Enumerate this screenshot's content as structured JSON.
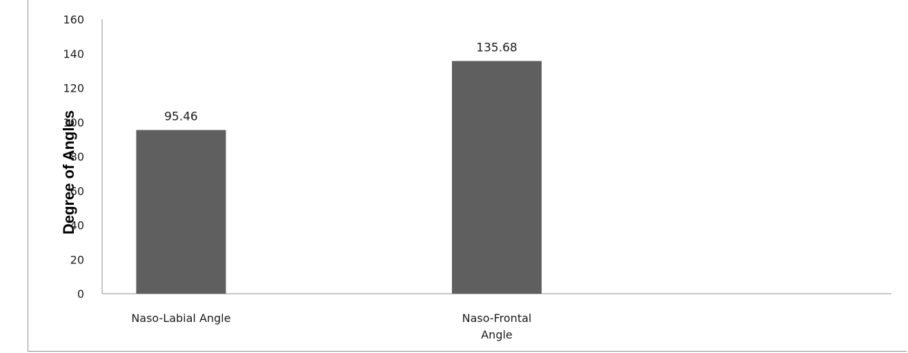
{
  "chart_data": {
    "type": "bar",
    "title": "",
    "xlabel": "",
    "ylabel": "Degree of Angles",
    "categories": [
      [
        "Naso-Labial Angle"
      ],
      [
        "Naso-Frontal",
        "Angle"
      ]
    ],
    "category_names": [
      "Naso-Labial Angle",
      "Naso-Frontal Angle"
    ],
    "values": [
      95.46,
      135.68
    ],
    "data_labels": [
      "95.46",
      "135.68"
    ],
    "ylim": [
      0,
      160
    ],
    "y_ticks": [
      0,
      20,
      40,
      60,
      80,
      100,
      120,
      140,
      160
    ],
    "grid": false,
    "legend": "none",
    "bar_color": "#5f5f5f",
    "axis_color": "#8c8c8c"
  }
}
